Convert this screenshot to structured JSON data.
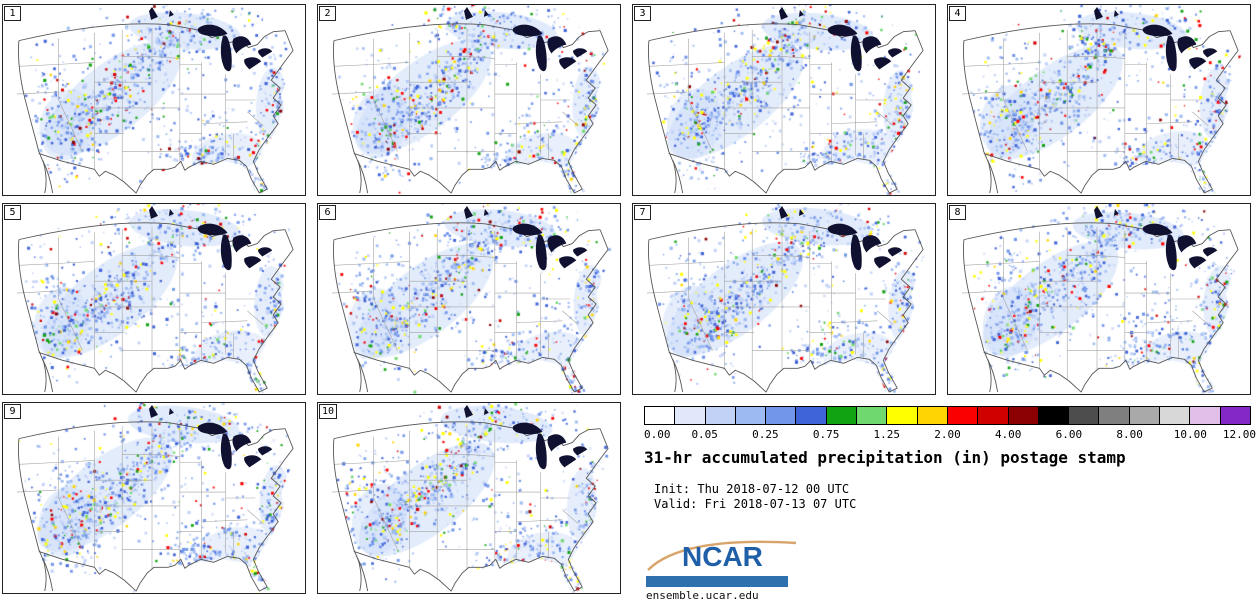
{
  "title": "31-hr accumulated precipitation (in) postage stamp",
  "init_line": "Init: Thu 2018-07-12 00 UTC",
  "valid_line": "Valid: Fri 2018-07-13 07 UTC",
  "panels": [
    {
      "label": "1"
    },
    {
      "label": "2"
    },
    {
      "label": "3"
    },
    {
      "label": "4"
    },
    {
      "label": "5"
    },
    {
      "label": "6"
    },
    {
      "label": "7"
    },
    {
      "label": "8"
    },
    {
      "label": "9"
    },
    {
      "label": "10"
    }
  ],
  "colorbar": {
    "labels": [
      "0.00",
      "0.05",
      "0.25",
      "0.75",
      "1.25",
      "2.00",
      "4.00",
      "6.00",
      "8.00",
      "10.00",
      "12.00"
    ],
    "colors": [
      "#ffffff",
      "#e1e8fa",
      "#c2d2f7",
      "#9dbbf2",
      "#7296ea",
      "#3f63d8",
      "#12a312",
      "#6fd96f",
      "#ffff00",
      "#ffd400",
      "#fa0000",
      "#d00000",
      "#8b0000",
      "#000000",
      "#4d4d4d",
      "#7f7f7f",
      "#a9a9a9",
      "#d8d8d8",
      "#e0c0e8",
      "#8428c8"
    ]
  },
  "footer": {
    "logo_text": "NCAR",
    "site": "ensemble.ucar.edu"
  },
  "branding": {
    "logo_color": "#1f5fa8",
    "bar_color": "#2e6fae",
    "swoosh_color": "#d8a469"
  }
}
